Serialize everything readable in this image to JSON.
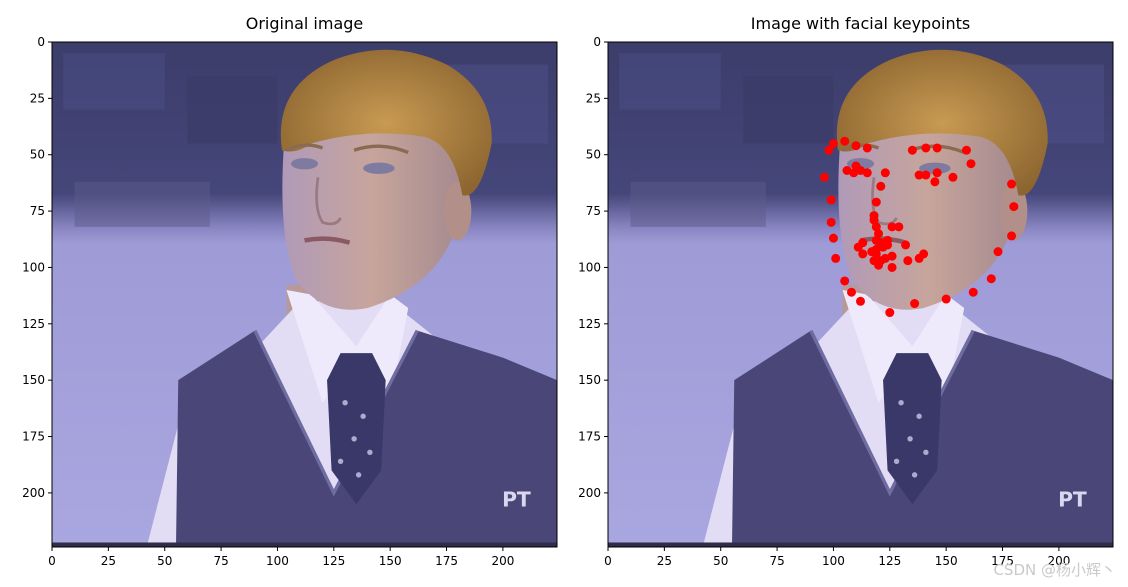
{
  "panels": [
    {
      "title": "Original image"
    },
    {
      "title": "Image with facial keypoints"
    }
  ],
  "axes": {
    "x_ticks": [
      0,
      25,
      50,
      75,
      100,
      125,
      150,
      175,
      200
    ],
    "y_ticks": [
      0,
      25,
      50,
      75,
      100,
      125,
      150,
      175,
      200
    ],
    "xlim": [
      0,
      224
    ],
    "ylim": [
      224,
      0
    ]
  },
  "image_text": {
    "corner_logo": "PT"
  },
  "keypoints": [
    [
      96,
      60
    ],
    [
      98,
      48
    ],
    [
      100,
      45
    ],
    [
      105,
      44
    ],
    [
      110,
      46
    ],
    [
      115,
      47
    ],
    [
      99,
      70
    ],
    [
      99,
      80
    ],
    [
      100,
      87
    ],
    [
      101,
      96
    ],
    [
      105,
      106
    ],
    [
      108,
      111
    ],
    [
      112,
      115
    ],
    [
      106,
      57
    ],
    [
      109,
      58
    ],
    [
      110,
      55
    ],
    [
      112,
      57
    ],
    [
      115,
      58
    ],
    [
      121,
      64
    ],
    [
      123,
      58
    ],
    [
      135,
      48
    ],
    [
      141,
      47
    ],
    [
      146,
      47
    ],
    [
      159,
      48
    ],
    [
      161,
      54
    ],
    [
      153,
      60
    ],
    [
      146,
      58
    ],
    [
      145,
      62
    ],
    [
      141,
      59
    ],
    [
      138,
      59
    ],
    [
      119,
      71
    ],
    [
      118,
      77
    ],
    [
      118,
      79
    ],
    [
      119,
      82
    ],
    [
      120,
      85
    ],
    [
      119,
      88
    ],
    [
      121,
      89
    ],
    [
      126,
      82
    ],
    [
      129,
      82
    ],
    [
      124,
      88
    ],
    [
      124,
      90
    ],
    [
      122,
      91
    ],
    [
      119,
      92
    ],
    [
      117,
      93
    ],
    [
      113,
      94
    ],
    [
      111,
      91
    ],
    [
      113,
      89
    ],
    [
      119,
      94
    ],
    [
      121,
      97
    ],
    [
      120,
      99
    ],
    [
      118,
      97
    ],
    [
      123,
      96
    ],
    [
      126,
      95
    ],
    [
      126,
      100
    ],
    [
      132,
      90
    ],
    [
      133,
      97
    ],
    [
      138,
      96
    ],
    [
      140,
      94
    ],
    [
      179,
      63
    ],
    [
      180,
      73
    ],
    [
      179,
      86
    ],
    [
      173,
      93
    ],
    [
      170,
      105
    ],
    [
      162,
      111
    ],
    [
      150,
      114
    ],
    [
      136,
      116
    ],
    [
      125,
      120
    ]
  ],
  "colors": {
    "keypoint": "#ff0000"
  },
  "watermark": "CSDN @杨小辉丶"
}
